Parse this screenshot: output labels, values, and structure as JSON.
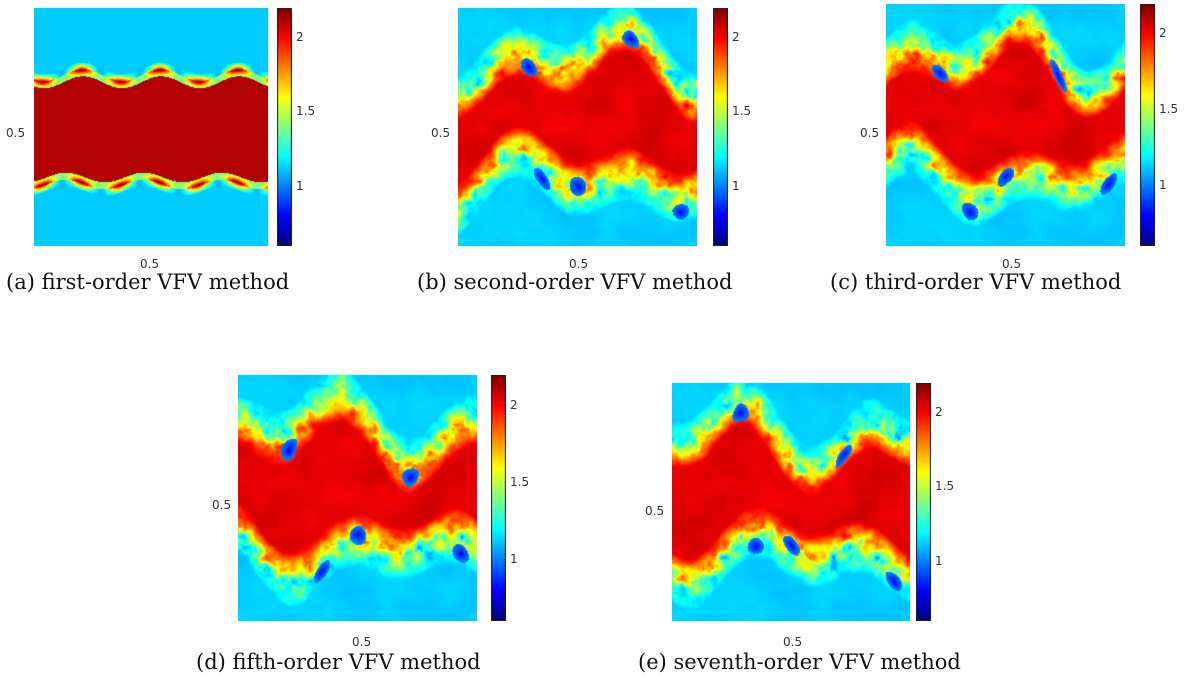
{
  "figure": {
    "panels": [
      {
        "caption": "(a) first-order VFV method",
        "x_tick": "0.5",
        "y_tick": "0.5",
        "colorbar_ticks": [
          "2",
          "1.5",
          "1"
        ],
        "pattern": "thin-layer"
      },
      {
        "caption": "(b) second-order VFV method",
        "x_tick": "0.5",
        "y_tick": "0.5",
        "colorbar_ticks": [
          "2",
          "1.5",
          "1"
        ],
        "pattern": "vortex"
      },
      {
        "caption": "(c) third-order VFV method",
        "x_tick": "0.5",
        "y_tick": "0.5",
        "colorbar_ticks": [
          "2",
          "1.5",
          "1"
        ],
        "pattern": "vortex"
      },
      {
        "caption": "(d) fifth-order VFV method",
        "x_tick": "0.5",
        "y_tick": "0.5",
        "colorbar_ticks": [
          "2",
          "1.5",
          "1"
        ],
        "pattern": "vortex"
      },
      {
        "caption": "(e) seventh-order VFV method",
        "x_tick": "0.5",
        "y_tick": "0.5",
        "colorbar_ticks": [
          "2",
          "1.5",
          "1"
        ],
        "pattern": "vortex"
      }
    ]
  },
  "chart_data": [
    {
      "type": "heatmap",
      "colormap": "jet",
      "clim": [
        0.6,
        2.2
      ],
      "colorbar_ticks": [
        2,
        1.5,
        1
      ],
      "x_ticks": [
        0.5
      ],
      "y_ticks": [
        0.5
      ]
    },
    {
      "type": "heatmap",
      "colormap": "jet",
      "clim": [
        0.6,
        2.2
      ],
      "colorbar_ticks": [
        2,
        1.5,
        1
      ],
      "x_ticks": [
        0.5
      ],
      "y_ticks": [
        0.5
      ]
    },
    {
      "type": "heatmap",
      "colormap": "jet",
      "clim": [
        0.6,
        2.2
      ],
      "colorbar_ticks": [
        2,
        1.5,
        1
      ],
      "x_ticks": [
        0.5
      ],
      "y_ticks": [
        0.5
      ]
    },
    {
      "type": "heatmap",
      "colormap": "jet",
      "clim": [
        0.6,
        2.2
      ],
      "colorbar_ticks": [
        2,
        1.5,
        1
      ],
      "x_ticks": [
        0.5
      ],
      "y_ticks": [
        0.5
      ]
    },
    {
      "type": "heatmap",
      "colormap": "jet",
      "clim": [
        0.6,
        2.2
      ],
      "colorbar_ticks": [
        2,
        1.5,
        1
      ],
      "x_ticks": [
        0.5
      ],
      "y_ticks": [
        0.5
      ]
    }
  ],
  "colors": {
    "background_low": "#2a9df4",
    "band_high": "#e21b0c",
    "band_high_dark": "#c41208",
    "mix_yellow": "#ffd21a",
    "mix_cyan": "#2ee6e0",
    "vortex_core": "#1a3fd6"
  }
}
